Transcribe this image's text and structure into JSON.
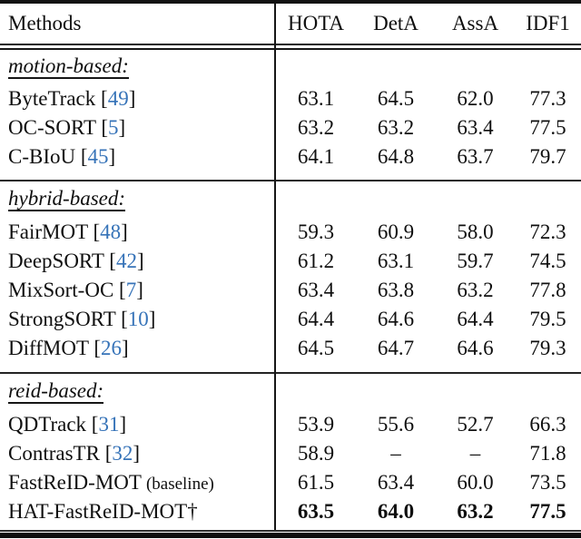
{
  "table": {
    "header": {
      "methods_label": "Methods",
      "metrics": [
        "HOTA",
        "DetA",
        "AssA",
        "IDF1"
      ]
    },
    "colors": {
      "citation": "#3673b8",
      "text": "#0f0f0f",
      "rule": "#161616"
    },
    "sections": [
      {
        "label": "motion-based:",
        "rows": [
          {
            "name": "ByteTrack",
            "cite": "49",
            "values": [
              "63.1",
              "64.5",
              "62.0",
              "77.3"
            ],
            "bold": false
          },
          {
            "name": "OC-SORT",
            "cite": "5",
            "values": [
              "63.2",
              "63.2",
              "63.4",
              "77.5"
            ],
            "bold": false
          },
          {
            "name": "C-BIoU",
            "cite": "45",
            "values": [
              "64.1",
              "64.8",
              "63.7",
              "79.7"
            ],
            "bold": false
          }
        ]
      },
      {
        "label": "hybrid-based:",
        "rows": [
          {
            "name": "FairMOT",
            "cite": "48",
            "values": [
              "59.3",
              "60.9",
              "58.0",
              "72.3"
            ],
            "bold": false
          },
          {
            "name": "DeepSORT",
            "cite": "42",
            "values": [
              "61.2",
              "63.1",
              "59.7",
              "74.5"
            ],
            "bold": false
          },
          {
            "name": "MixSort-OC",
            "cite": "7",
            "values": [
              "63.4",
              "63.8",
              "63.2",
              "77.8"
            ],
            "bold": false
          },
          {
            "name": "StrongSORT",
            "cite": "10",
            "values": [
              "64.4",
              "64.6",
              "64.4",
              "79.5"
            ],
            "bold": false
          },
          {
            "name": "DiffMOT",
            "cite": "26",
            "values": [
              "64.5",
              "64.7",
              "64.6",
              "79.3"
            ],
            "bold": false
          }
        ]
      },
      {
        "label": "reid-based:",
        "rows": [
          {
            "name": "QDTrack",
            "cite": "31",
            "values": [
              "53.9",
              "55.6",
              "52.7",
              "66.3"
            ],
            "bold": false
          },
          {
            "name": "ContrasTR",
            "cite": "32",
            "values": [
              "58.9",
              "–",
              "–",
              "71.8"
            ],
            "bold": false
          },
          {
            "name": "FastReID-MOT",
            "note": "(baseline)",
            "values": [
              "61.5",
              "63.4",
              "60.0",
              "73.5"
            ],
            "bold": false
          },
          {
            "name": "HAT-FastReID-MOT†",
            "values": [
              "63.5",
              "64.0",
              "63.2",
              "77.5"
            ],
            "bold": true
          }
        ]
      }
    ]
  }
}
